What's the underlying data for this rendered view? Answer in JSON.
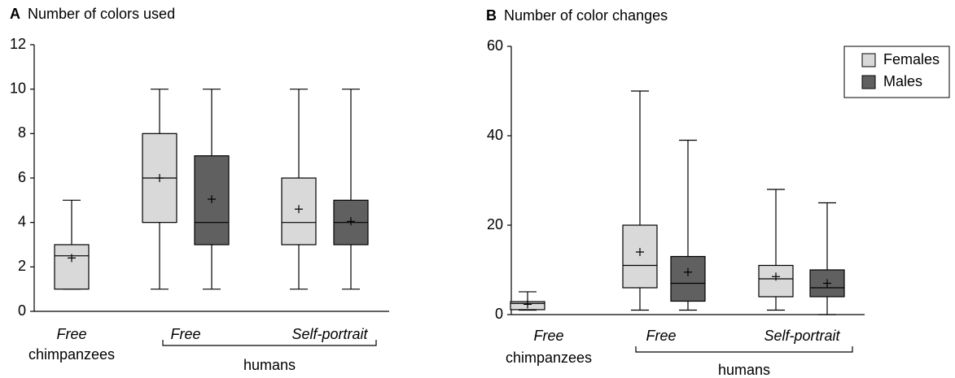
{
  "chart_data": [
    {
      "type": "box",
      "panel": "A",
      "title": "Number of colors used",
      "ylim": [
        0,
        12
      ],
      "yticks": [
        0,
        2,
        4,
        6,
        8,
        10,
        12
      ],
      "categories": [
        "Free",
        "Free",
        "Self-portrait"
      ],
      "group_labels": [
        "chimpanzees",
        "humans"
      ],
      "series": [
        {
          "color": "#d9d9d9"
        },
        {
          "color": "#606060"
        }
      ],
      "legend": false,
      "boxes": [
        {
          "category": 0,
          "series": 0,
          "min": 1,
          "q1": 1,
          "median": 2.5,
          "q3": 3,
          "max": 5,
          "mean": 2.4
        },
        {
          "category": 1,
          "series": 0,
          "min": 1,
          "q1": 4,
          "median": 6,
          "q3": 8,
          "max": 10,
          "mean": 6
        },
        {
          "category": 1,
          "series": 1,
          "min": 1,
          "q1": 3,
          "median": 4,
          "q3": 7,
          "max": 10,
          "mean": 5.05
        },
        {
          "category": 2,
          "series": 0,
          "min": 1,
          "q1": 3,
          "median": 4,
          "q3": 6,
          "max": 10,
          "mean": 4.6
        },
        {
          "category": 2,
          "series": 1,
          "min": 1,
          "q1": 3,
          "median": 4,
          "q3": 5,
          "max": 10,
          "mean": 4.05
        }
      ]
    },
    {
      "type": "box",
      "panel": "B",
      "title": "Number of color changes",
      "ylim": [
        0,
        60
      ],
      "yticks": [
        0,
        20,
        40,
        60
      ],
      "categories": [
        "Free",
        "Free",
        "Self-portrait"
      ],
      "group_labels": [
        "chimpanzees",
        "humans"
      ],
      "series": [
        {
          "name": "Females",
          "color": "#d9d9d9"
        },
        {
          "name": "Males",
          "color": "#606060"
        }
      ],
      "legend": true,
      "boxes": [
        {
          "category": 0,
          "series": 0,
          "min": 1,
          "q1": 1.1,
          "median": 2.5,
          "q3": 2.9,
          "max": 5.1,
          "mean": 2.3
        },
        {
          "category": 1,
          "series": 0,
          "min": 1,
          "q1": 6,
          "median": 11,
          "q3": 20,
          "max": 50,
          "mean": 14
        },
        {
          "category": 1,
          "series": 1,
          "min": 1,
          "q1": 3,
          "median": 7,
          "q3": 13,
          "max": 39,
          "mean": 9.5
        },
        {
          "category": 2,
          "series": 0,
          "min": 1,
          "q1": 4,
          "median": 8,
          "q3": 11,
          "max": 28,
          "mean": 8.5
        },
        {
          "category": 2,
          "series": 1,
          "min": 0,
          "q1": 4,
          "median": 6,
          "q3": 10,
          "max": 25,
          "mean": 7
        }
      ]
    }
  ]
}
